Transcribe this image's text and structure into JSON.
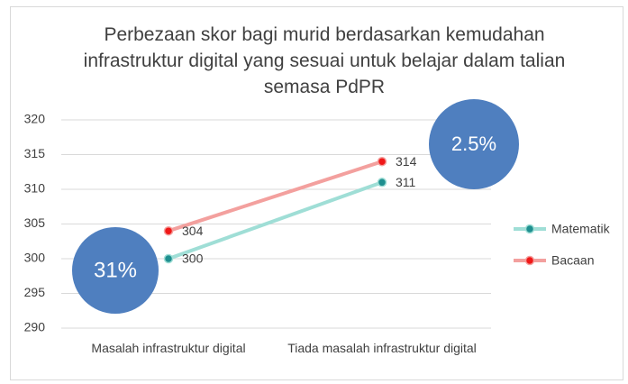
{
  "chart_data": {
    "type": "line",
    "title": "Perbezaan skor bagi murid berdasarkan kemudahan infrastruktur digital yang sesuai untuk belajar dalam talian semasa PdPR",
    "categories": [
      "Masalah infrastruktur digital",
      "Tiada masalah infrastruktur digital"
    ],
    "series": [
      {
        "name": "Matematik",
        "color": "#9fded6",
        "marker_color": "#1f8f8f",
        "values": [
          300,
          311
        ]
      },
      {
        "name": "Bacaan",
        "color": "#f3a09e",
        "marker_color": "#f01818",
        "values": [
          304,
          314
        ]
      }
    ],
    "ylim": [
      290,
      320
    ],
    "yticks": [
      290,
      295,
      300,
      305,
      310,
      315,
      320
    ],
    "grid": true,
    "legend": "right",
    "annotations": [
      "31%",
      "2.5%"
    ],
    "annotation_color": "#4f7fbf"
  }
}
